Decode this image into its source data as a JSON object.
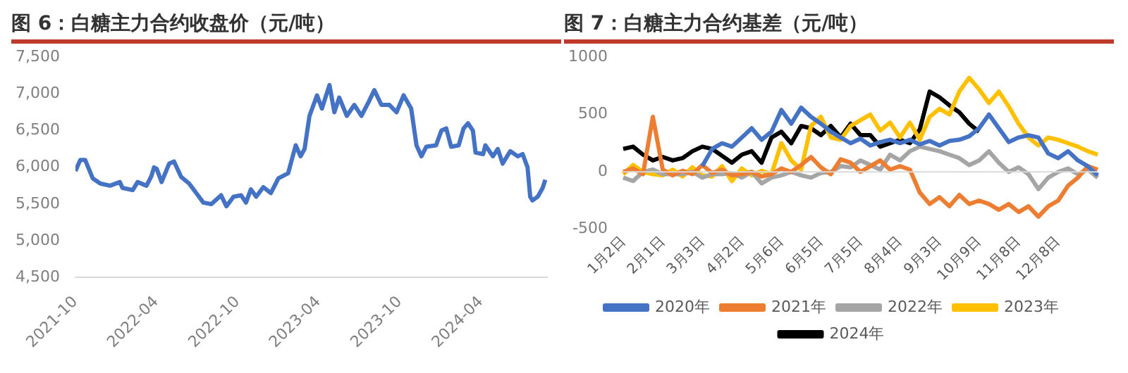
{
  "chart_data": [
    {
      "type": "line",
      "title": "图 6：白糖主力合约收盘价（元/吨）",
      "x": [
        "2021-10-01",
        "2021-10-12",
        "2021-10-23",
        "2021-11-09",
        "2021-11-26",
        "2021-12-18",
        "2022-01-09",
        "2022-01-15",
        "2022-02-07",
        "2022-02-18",
        "2022-03-10",
        "2022-03-21",
        "2022-03-27",
        "2022-04-02",
        "2022-04-13",
        "2022-04-30",
        "2022-05-11",
        "2022-05-27",
        "2022-06-14",
        "2022-06-30",
        "2022-07-16",
        "2022-08-03",
        "2022-08-25",
        "2022-09-06",
        "2022-09-22",
        "2022-10-09",
        "2022-10-20",
        "2022-10-31",
        "2022-11-12",
        "2022-11-28",
        "2022-12-15",
        "2023-01-01",
        "2023-01-23",
        "2023-02-09",
        "2023-02-20",
        "2023-03-01",
        "2023-03-12",
        "2023-03-29",
        "2023-04-09",
        "2023-04-26",
        "2023-05-07",
        "2023-05-18",
        "2023-06-04",
        "2023-06-21",
        "2023-07-07",
        "2023-07-24",
        "2023-08-05",
        "2023-08-21",
        "2023-09-08",
        "2023-09-24",
        "2023-10-10",
        "2023-10-27",
        "2023-11-08",
        "2023-11-19",
        "2023-11-30",
        "2023-12-22",
        "2024-01-03",
        "2024-01-14",
        "2024-01-25",
        "2024-02-11",
        "2024-02-22",
        "2024-03-03",
        "2024-03-14",
        "2024-03-20",
        "2024-04-06",
        "2024-04-11",
        "2024-04-28",
        "2024-05-09",
        "2024-05-20",
        "2024-06-06",
        "2024-06-23",
        "2024-07-04",
        "2024-07-15",
        "2024-07-21",
        "2024-07-26",
        "2024-08-07",
        "2024-08-18",
        "2024-08-24"
      ],
      "series": [
        {
          "color": "#4472c4",
          "values": [
            5950,
            6100,
            6100,
            5850,
            5780,
            5750,
            5800,
            5720,
            5690,
            5800,
            5750,
            5880,
            6000,
            5980,
            5800,
            6050,
            6080,
            5870,
            5780,
            5650,
            5520,
            5500,
            5620,
            5470,
            5600,
            5620,
            5520,
            5700,
            5600,
            5730,
            5650,
            5850,
            5920,
            6300,
            6150,
            6250,
            6700,
            6980,
            6800,
            7120,
            6750,
            6950,
            6700,
            6850,
            6700,
            6900,
            7050,
            6850,
            6850,
            6750,
            6980,
            6800,
            6300,
            6150,
            6280,
            6300,
            6500,
            6530,
            6280,
            6300,
            6530,
            6600,
            6500,
            6200,
            6180,
            6300,
            6150,
            6250,
            6050,
            6220,
            6150,
            6180,
            6000,
            5600,
            5550,
            5600,
            5720,
            5830
          ]
        }
      ],
      "xlim": [
        "2021-10-01",
        "2024-08-28"
      ],
      "xticks": [
        "2021-10",
        "2022-04",
        "2022-10",
        "2023-04",
        "2023-10",
        "2024-04"
      ],
      "ylim": [
        4500,
        7500
      ],
      "yticks": [
        {
          "value": 4500,
          "label": "4,500"
        },
        {
          "value": 5000,
          "label": "5,000"
        },
        {
          "value": 5500,
          "label": "5,500"
        },
        {
          "value": 6000,
          "label": "6,000"
        },
        {
          "value": 6500,
          "label": "6,500"
        },
        {
          "value": 7000,
          "label": "7,000"
        },
        {
          "value": 7500,
          "label": "7,500"
        }
      ]
    },
    {
      "type": "line",
      "title": "图 7：白糖主力合约基差（元/吨）",
      "categories": [
        "1月2日",
        null,
        null,
        null,
        "2月1日",
        null,
        null,
        null,
        "3月3日",
        null,
        null,
        null,
        "4月2日",
        null,
        null,
        null,
        "5月6日",
        null,
        null,
        null,
        "6月5日",
        null,
        null,
        null,
        "7月5日",
        null,
        null,
        null,
        "8月4日",
        null,
        null,
        null,
        "9月3日",
        null,
        null,
        null,
        "10月9日",
        null,
        null,
        null,
        "11月8日",
        null,
        null,
        null,
        "12月8日",
        null,
        null,
        null,
        null
      ],
      "series": [
        {
          "name": "2020年",
          "color": "#4472c4",
          "values": [
            null,
            null,
            null,
            null,
            null,
            null,
            null,
            null,
            50,
            200,
            250,
            220,
            300,
            380,
            280,
            350,
            540,
            420,
            560,
            480,
            420,
            350,
            300,
            250,
            290,
            230,
            260,
            280,
            250,
            280,
            240,
            270,
            230,
            270,
            280,
            310,
            380,
            500,
            380,
            260,
            300,
            320,
            300,
            160,
            120,
            180,
            100,
            50,
            -30
          ]
        },
        {
          "name": "2021年",
          "color": "#ed7d31",
          "values": [
            0,
            30,
            -20,
            480,
            20,
            -30,
            10,
            -20,
            60,
            -10,
            20,
            -30,
            -20,
            0,
            -40,
            -20,
            30,
            0,
            60,
            130,
            40,
            -20,
            110,
            80,
            0,
            50,
            100,
            20,
            50,
            20,
            -180,
            -280,
            -220,
            -300,
            -200,
            -280,
            -250,
            -280,
            -330,
            -280,
            -350,
            -300,
            -390,
            -300,
            -250,
            -120,
            -50,
            50,
            20
          ]
        },
        {
          "name": "2022年",
          "color": "#a5a5a5",
          "values": [
            -50,
            -80,
            0,
            20,
            -20,
            -20,
            -20,
            0,
            -50,
            -20,
            -20,
            -10,
            -50,
            0,
            -100,
            -50,
            -30,
            0,
            -30,
            -50,
            -10,
            0,
            50,
            40,
            100,
            60,
            20,
            150,
            100,
            180,
            220,
            200,
            180,
            150,
            120,
            60,
            100,
            180,
            80,
            0,
            40,
            -20,
            -150,
            -50,
            0,
            30,
            -20,
            20,
            -50
          ]
        },
        {
          "name": "2023年",
          "color": "#ffc000",
          "values": [
            -20,
            60,
            0,
            -20,
            -30,
            20,
            -40,
            40,
            -30,
            -40,
            50,
            -80,
            30,
            -30,
            10,
            -20,
            250,
            100,
            20,
            400,
            480,
            300,
            280,
            400,
            450,
            500,
            360,
            430,
            300,
            430,
            280,
            480,
            550,
            500,
            700,
            820,
            720,
            600,
            700,
            570,
            420,
            300,
            230,
            300,
            280,
            250,
            220,
            180,
            150
          ]
        },
        {
          "name": "2024年",
          "color": "#000000",
          "values": [
            200,
            220,
            150,
            100,
            130,
            100,
            120,
            180,
            220,
            200,
            140,
            80,
            150,
            180,
            80,
            300,
            350,
            250,
            400,
            380,
            320,
            400,
            300,
            420,
            320,
            320,
            220,
            250,
            280,
            250,
            370,
            700,
            650,
            580,
            520,
            420,
            350,
            null,
            null,
            null,
            null,
            null,
            null,
            null,
            null,
            null,
            null,
            null,
            null
          ]
        }
      ],
      "ylim": [
        -500,
        1000
      ],
      "yticks": [
        -500,
        0,
        500,
        1000
      ],
      "legend": "bottom",
      "ref_lines": [
        {
          "axis": "y",
          "value": 0,
          "color": "#d9d9d9"
        }
      ]
    }
  ]
}
